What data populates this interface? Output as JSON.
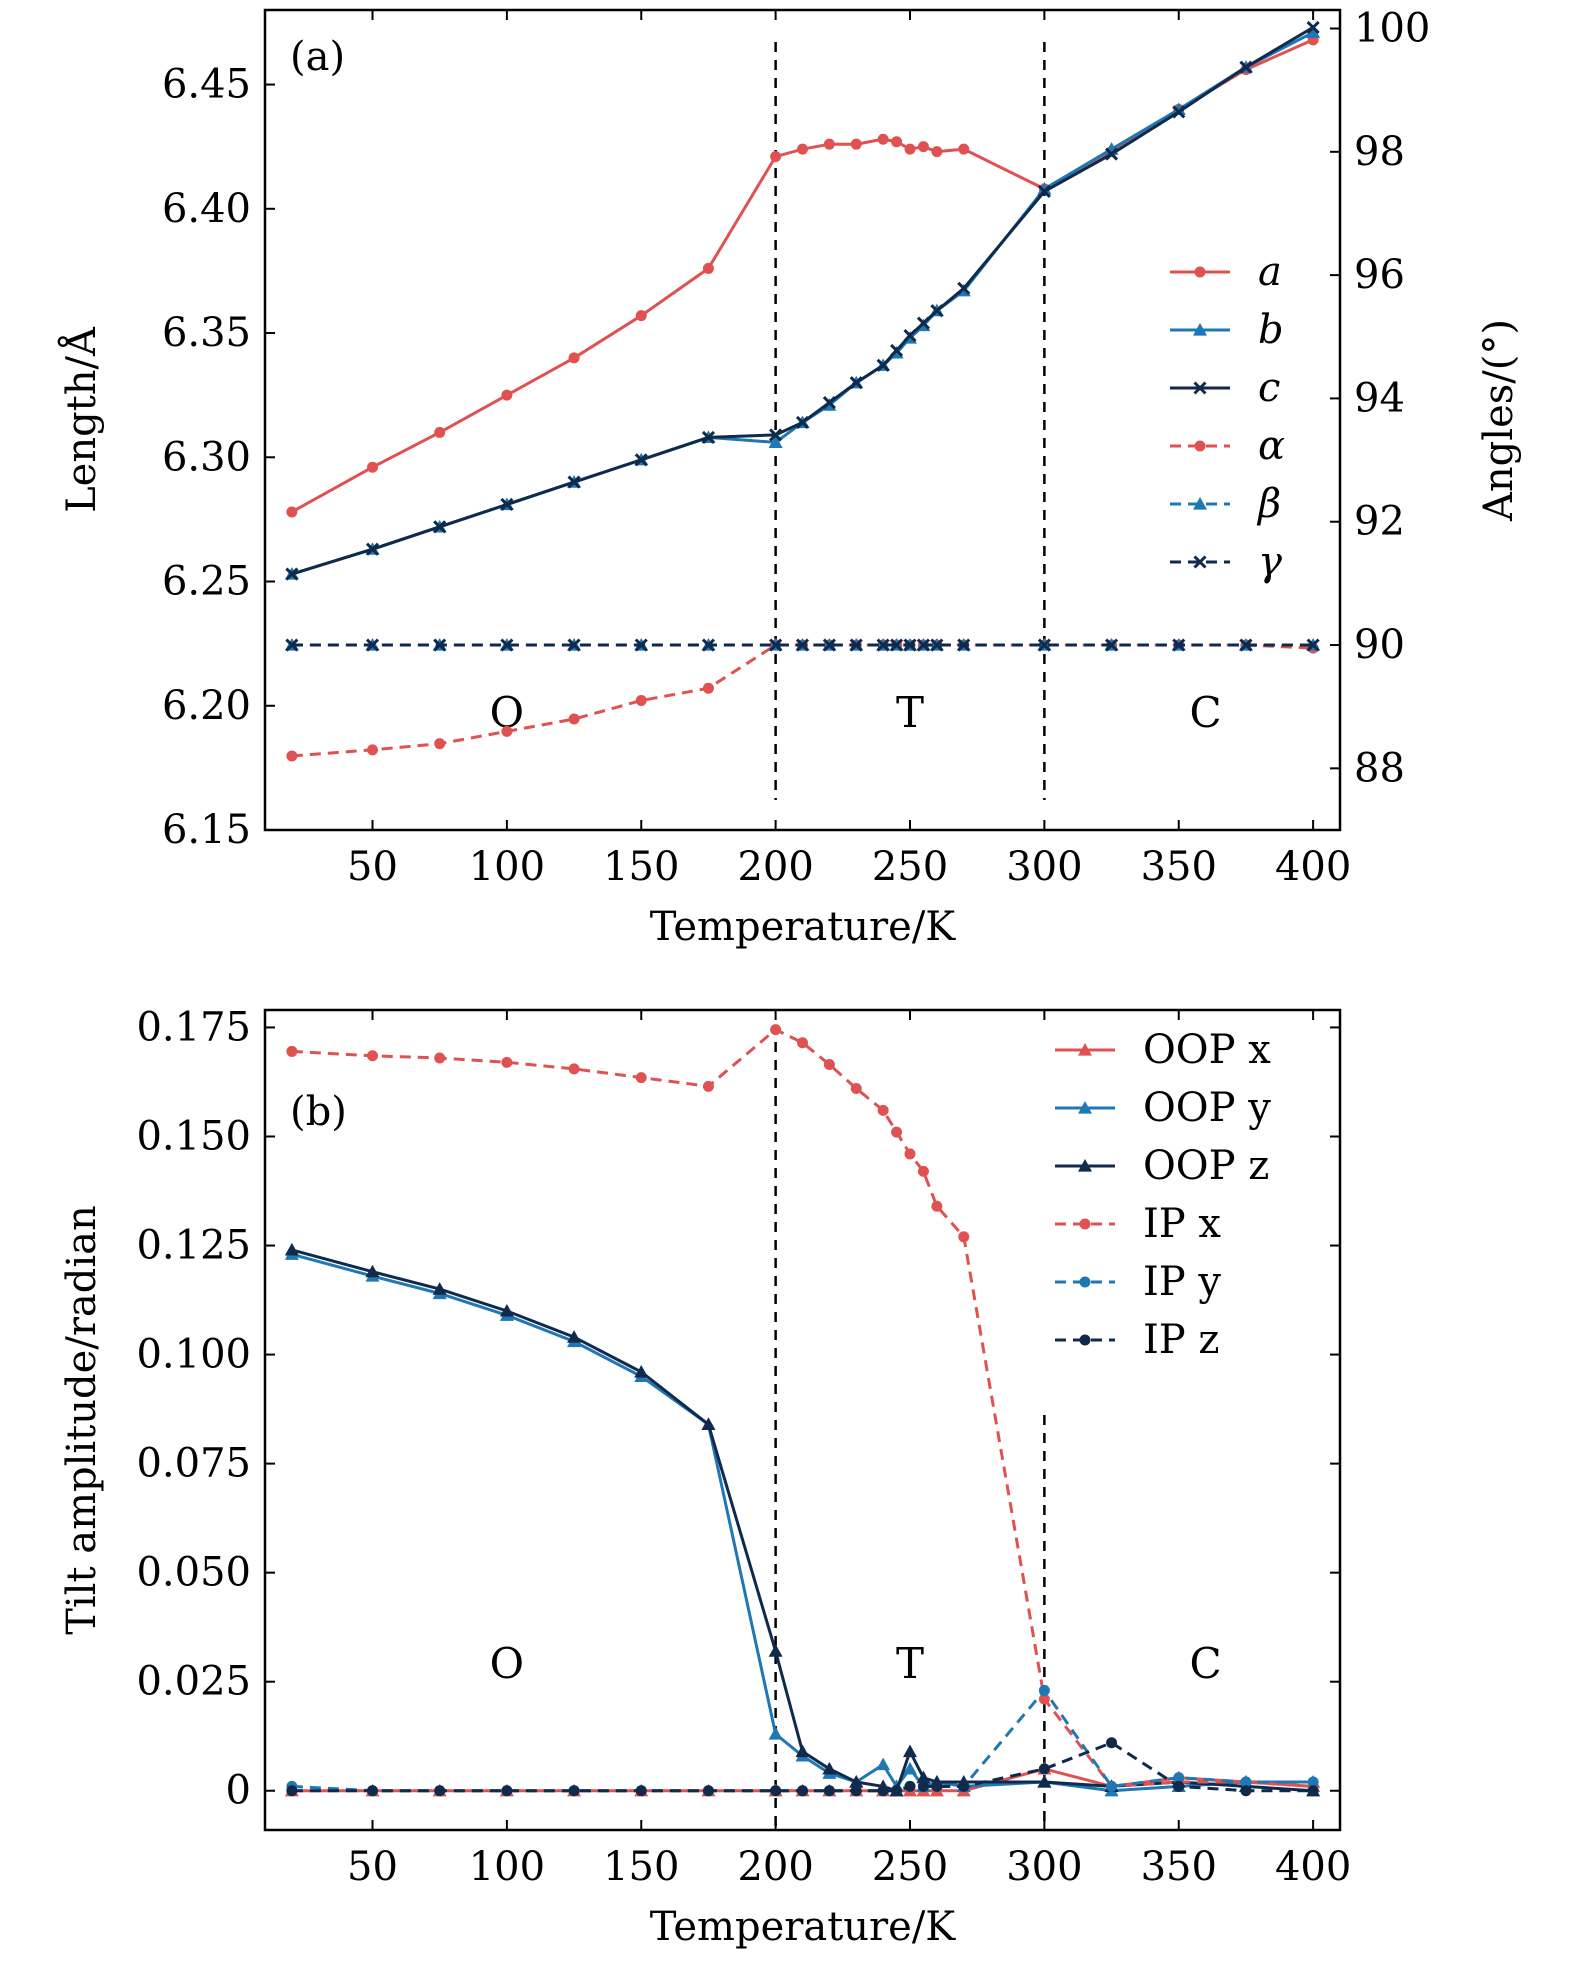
{
  "colors": {
    "red": "#e05252",
    "blue": "#1f77b4",
    "navy": "#102a4c"
  },
  "chart_data": [
    {
      "type": "line",
      "panel_label": "(a)",
      "xlabel": "Temperature/K",
      "ylabel": "Length/Å",
      "y2label": "Angles/(°)",
      "xlim": [
        10,
        410
      ],
      "ylim": [
        6.15,
        6.48
      ],
      "y2lim": [
        87.0,
        100.3
      ],
      "xticks": [
        "50",
        "100",
        "150",
        "200",
        "250",
        "300",
        "350",
        "400"
      ],
      "yticks": [
        "6.15",
        "6.20",
        "6.25",
        "6.30",
        "6.35",
        "6.40",
        "6.45"
      ],
      "y2ticks": [
        "88",
        "90",
        "92",
        "94",
        "96",
        "98",
        "100"
      ],
      "vlines": [
        200,
        300
      ],
      "regions": [
        "O",
        "T",
        "C"
      ],
      "series": [
        {
          "name": "a",
          "axis": "left",
          "marker": "circle",
          "dash": false,
          "color": "red",
          "x": [
            20,
            50,
            75,
            100,
            125,
            150,
            175,
            200,
            210,
            220,
            230,
            240,
            245,
            250,
            255,
            260,
            270,
            300,
            325,
            350,
            375,
            400
          ],
          "y": [
            6.278,
            6.296,
            6.31,
            6.325,
            6.34,
            6.357,
            6.376,
            6.421,
            6.424,
            6.426,
            6.426,
            6.428,
            6.427,
            6.424,
            6.425,
            6.423,
            6.424,
            6.408,
            6.423,
            6.44,
            6.456,
            6.468
          ]
        },
        {
          "name": "b",
          "axis": "left",
          "marker": "triangle",
          "dash": false,
          "color": "blue",
          "x": [
            20,
            50,
            75,
            100,
            125,
            150,
            175,
            200,
            210,
            220,
            230,
            240,
            245,
            250,
            255,
            260,
            270,
            300,
            325,
            350,
            375,
            400
          ],
          "y": [
            6.253,
            6.263,
            6.272,
            6.281,
            6.29,
            6.299,
            6.308,
            6.306,
            6.314,
            6.321,
            6.33,
            6.337,
            6.342,
            6.348,
            6.353,
            6.359,
            6.367,
            6.408,
            6.424,
            6.44,
            6.457,
            6.471
          ]
        },
        {
          "name": "c",
          "axis": "left",
          "marker": "x",
          "dash": false,
          "color": "navy",
          "x": [
            20,
            50,
            75,
            100,
            125,
            150,
            175,
            200,
            210,
            220,
            230,
            240,
            245,
            250,
            255,
            260,
            270,
            300,
            325,
            350,
            375,
            400
          ],
          "y": [
            6.253,
            6.263,
            6.272,
            6.281,
            6.29,
            6.299,
            6.308,
            6.309,
            6.314,
            6.322,
            6.33,
            6.337,
            6.343,
            6.349,
            6.354,
            6.359,
            6.368,
            6.407,
            6.422,
            6.439,
            6.457,
            6.473
          ]
        },
        {
          "name": "α",
          "axis": "right",
          "marker": "circle",
          "dash": true,
          "color": "red",
          "x": [
            20,
            50,
            75,
            100,
            125,
            150,
            175,
            200,
            210,
            220,
            230,
            240,
            245,
            250,
            255,
            260,
            270,
            300,
            325,
            350,
            375,
            400
          ],
          "y": [
            88.2,
            88.3,
            88.4,
            88.6,
            88.8,
            89.1,
            89.3,
            90.0,
            90.0,
            90.0,
            90.0,
            90.0,
            90.0,
            90.0,
            90.0,
            90.0,
            90.0,
            90.0,
            90.0,
            90.0,
            90.0,
            89.95
          ]
        },
        {
          "name": "β",
          "axis": "right",
          "marker": "triangle",
          "dash": true,
          "color": "blue",
          "x": [
            20,
            50,
            75,
            100,
            125,
            150,
            175,
            200,
            210,
            220,
            230,
            240,
            245,
            250,
            255,
            260,
            270,
            300,
            325,
            350,
            375,
            400
          ],
          "y": [
            90.0,
            90.0,
            90.0,
            90.0,
            90.0,
            90.0,
            90.0,
            90.0,
            90.0,
            90.0,
            90.0,
            90.0,
            90.0,
            90.0,
            90.0,
            90.0,
            90.0,
            90.0,
            90.0,
            90.0,
            90.0,
            90.0
          ]
        },
        {
          "name": "γ",
          "axis": "right",
          "marker": "x",
          "dash": true,
          "color": "navy",
          "x": [
            20,
            50,
            75,
            100,
            125,
            150,
            175,
            200,
            210,
            220,
            230,
            240,
            245,
            250,
            255,
            260,
            270,
            300,
            325,
            350,
            375,
            400
          ],
          "y": [
            90.0,
            90.0,
            90.0,
            90.0,
            90.0,
            90.0,
            90.0,
            90.0,
            90.0,
            90.0,
            90.0,
            90.0,
            90.0,
            90.0,
            90.0,
            90.0,
            90.0,
            90.0,
            90.0,
            90.0,
            90.0,
            90.0
          ]
        }
      ]
    },
    {
      "type": "line",
      "panel_label": "(b)",
      "xlabel": "Temperature/K",
      "ylabel": "Tilt amplitude/radian",
      "xlim": [
        10,
        410
      ],
      "ylim": [
        -0.009,
        0.179
      ],
      "xticks": [
        "50",
        "100",
        "150",
        "200",
        "250",
        "300",
        "350",
        "400"
      ],
      "yticks": [
        "0",
        "0.025",
        "0.050",
        "0.075",
        "0.100",
        "0.125",
        "0.150",
        "0.175"
      ],
      "vlines": [
        200,
        300
      ],
      "regions": [
        "O",
        "T",
        "C"
      ],
      "series": [
        {
          "name": "OOP x",
          "marker": "triangle",
          "dash": false,
          "color": "red",
          "x": [
            20,
            50,
            75,
            100,
            125,
            150,
            175,
            200,
            210,
            220,
            230,
            240,
            245,
            250,
            255,
            260,
            270,
            300,
            325,
            350,
            375,
            400
          ],
          "y": [
            0.0,
            0.0,
            0.0,
            0.0,
            0.0,
            0.0,
            0.0,
            0.0,
            0.0,
            0.0,
            0.0,
            0.0,
            0.0,
            0.0,
            0.0,
            0.0,
            0.0,
            0.005,
            0.001,
            0.003,
            0.002,
            0.001
          ]
        },
        {
          "name": "OOP y",
          "marker": "triangle",
          "dash": false,
          "color": "blue",
          "x": [
            20,
            50,
            75,
            100,
            125,
            150,
            175,
            200,
            210,
            220,
            230,
            240,
            245,
            250,
            255,
            260,
            270,
            300,
            325,
            350,
            375,
            400
          ],
          "y": [
            0.123,
            0.118,
            0.114,
            0.109,
            0.103,
            0.095,
            0.084,
            0.013,
            0.008,
            0.004,
            0.002,
            0.006,
            0.001,
            0.005,
            0.001,
            0.002,
            0.001,
            0.002,
            0.0,
            0.001,
            0.002,
            0.002
          ]
        },
        {
          "name": "OOP z",
          "marker": "triangle",
          "dash": false,
          "color": "navy",
          "x": [
            20,
            50,
            75,
            100,
            125,
            150,
            175,
            200,
            210,
            220,
            230,
            240,
            245,
            250,
            255,
            260,
            270,
            300,
            325,
            350,
            375,
            400
          ],
          "y": [
            0.124,
            0.119,
            0.115,
            0.11,
            0.104,
            0.096,
            0.084,
            0.032,
            0.009,
            0.005,
            0.002,
            0.001,
            0.0,
            0.009,
            0.003,
            0.002,
            0.002,
            0.002,
            0.001,
            0.002,
            0.001,
            0.0
          ]
        },
        {
          "name": "IP x",
          "marker": "circle",
          "dash": true,
          "color": "red",
          "x": [
            20,
            50,
            75,
            100,
            125,
            150,
            175,
            200,
            210,
            220,
            230,
            240,
            245,
            250,
            255,
            260,
            270,
            300,
            325,
            350,
            375,
            400
          ],
          "y": [
            0.1695,
            0.1685,
            0.168,
            0.167,
            0.1655,
            0.1635,
            0.1615,
            0.1745,
            0.1715,
            0.1665,
            0.161,
            0.156,
            0.151,
            0.146,
            0.142,
            0.134,
            0.127,
            0.021,
            0.001,
            0.002,
            0.002,
            0.001
          ]
        },
        {
          "name": "IP y",
          "marker": "circle",
          "dash": true,
          "color": "blue",
          "x": [
            20,
            50,
            75,
            100,
            125,
            150,
            175,
            200,
            210,
            220,
            230,
            240,
            245,
            250,
            255,
            260,
            270,
            300,
            325,
            350,
            375,
            400
          ],
          "y": [
            0.001,
            0.0,
            0.0,
            0.0,
            0.0,
            0.0,
            0.0,
            0.0,
            0.0,
            0.0,
            0.0,
            0.0,
            0.0,
            0.001,
            0.001,
            0.001,
            0.001,
            0.023,
            0.001,
            0.003,
            0.002,
            0.002
          ]
        },
        {
          "name": "IP z",
          "marker": "circle",
          "dash": true,
          "color": "navy",
          "x": [
            20,
            50,
            75,
            100,
            125,
            150,
            175,
            200,
            210,
            220,
            230,
            240,
            245,
            250,
            255,
            260,
            270,
            300,
            325,
            350,
            375,
            400
          ],
          "y": [
            0.0,
            0.0,
            0.0,
            0.0,
            0.0,
            0.0,
            0.0,
            0.0,
            0.0,
            0.0,
            0.0,
            0.0,
            0.0,
            0.001,
            0.001,
            0.001,
            0.001,
            0.005,
            0.011,
            0.001,
            0.0,
            0.0
          ]
        }
      ]
    }
  ]
}
